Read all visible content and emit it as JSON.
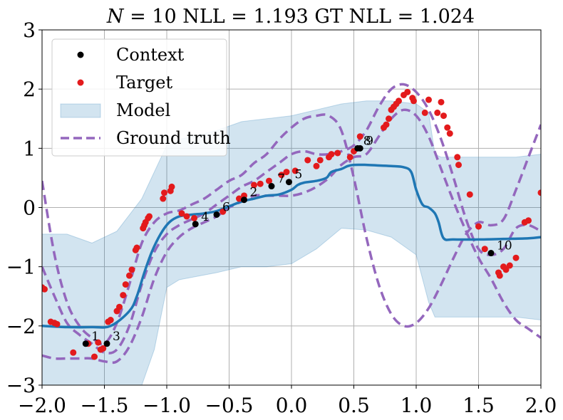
{
  "chart_data": {
    "type": "line",
    "title": "N = 10 NLL = 1.193 GT NLL = 1.024",
    "title_parts": {
      "n_var": "N",
      "rest": " = 10 NLL = 1.193 GT NLL = 1.024"
    },
    "xlabel": "",
    "ylabel": "",
    "xlim": [
      -2.0,
      2.0
    ],
    "ylim": [
      -3,
      3
    ],
    "x_ticks": [
      -2.0,
      -1.5,
      -1.0,
      -0.5,
      0.0,
      0.5,
      1.0,
      1.5,
      2.0
    ],
    "x_tick_labels": [
      "−2.0",
      "−1.5",
      "−1.0",
      "−0.5",
      "0.0",
      "0.5",
      "1.0",
      "1.5",
      "2.0"
    ],
    "y_ticks": [
      -3,
      -2,
      -1,
      0,
      1,
      2,
      3
    ],
    "y_tick_labels": [
      "−3",
      "−2",
      "−1",
      "0",
      "1",
      "2",
      "3"
    ],
    "grid": true,
    "legend": {
      "position": "top-left",
      "entries": [
        {
          "label": "Context",
          "kind": "marker",
          "color": "#000000"
        },
        {
          "label": "Target",
          "kind": "marker",
          "color": "#e31a1c"
        },
        {
          "label": "Model",
          "kind": "patch",
          "color": "#1f77b4"
        },
        {
          "label": "Ground truth",
          "kind": "dashed-line",
          "color": "#9467bd"
        }
      ]
    },
    "colors": {
      "model_mean": "#1f77b4",
      "model_band": "#1f77b4",
      "ground_truth": "#9467bd",
      "context": "#000000",
      "target": "#e31a1c",
      "grid": "#b0b0b0"
    },
    "context_points": [
      {
        "label": "1",
        "x": -1.65,
        "y": -2.3
      },
      {
        "label": "3",
        "x": -1.48,
        "y": -2.3
      },
      {
        "label": "4",
        "x": -0.77,
        "y": -0.28
      },
      {
        "label": "6",
        "x": -0.6,
        "y": -0.12
      },
      {
        "label": "2",
        "x": -0.38,
        "y": 0.13
      },
      {
        "label": "7",
        "x": -0.16,
        "y": 0.36
      },
      {
        "label": "5",
        "x": -0.02,
        "y": 0.43
      },
      {
        "label": "8",
        "x": 0.53,
        "y": 1.0
      },
      {
        "label": "9",
        "x": 0.55,
        "y": 1.0
      },
      {
        "label": "10",
        "x": 1.6,
        "y": -0.77
      }
    ],
    "target_points": [
      {
        "x": -2.0,
        "y": -1.35
      },
      {
        "x": -1.98,
        "y": -1.38
      },
      {
        "x": -1.93,
        "y": -1.93
      },
      {
        "x": -1.9,
        "y": -1.95
      },
      {
        "x": -1.88,
        "y": -1.97
      },
      {
        "x": -1.75,
        "y": -2.45
      },
      {
        "x": -1.63,
        "y": -2.3
      },
      {
        "x": -1.58,
        "y": -2.52
      },
      {
        "x": -1.55,
        "y": -2.28
      },
      {
        "x": -1.53,
        "y": -2.4
      },
      {
        "x": -1.51,
        "y": -2.38
      },
      {
        "x": -1.47,
        "y": -1.93
      },
      {
        "x": -1.45,
        "y": -1.9
      },
      {
        "x": -1.4,
        "y": -1.75
      },
      {
        "x": -1.38,
        "y": -1.68
      },
      {
        "x": -1.35,
        "y": -1.48
      },
      {
        "x": -1.33,
        "y": -1.3
      },
      {
        "x": -1.3,
        "y": -1.15
      },
      {
        "x": -1.28,
        "y": -1.05
      },
      {
        "x": -1.25,
        "y": -0.72
      },
      {
        "x": -1.24,
        "y": -0.68
      },
      {
        "x": -1.19,
        "y": -0.35
      },
      {
        "x": -1.18,
        "y": -0.3
      },
      {
        "x": -1.17,
        "y": -0.25
      },
      {
        "x": -1.15,
        "y": -0.18
      },
      {
        "x": -1.14,
        "y": -0.15
      },
      {
        "x": -1.03,
        "y": 0.15
      },
      {
        "x": -1.02,
        "y": 0.25
      },
      {
        "x": -0.97,
        "y": 0.28
      },
      {
        "x": -0.96,
        "y": 0.35
      },
      {
        "x": -0.88,
        "y": -0.1
      },
      {
        "x": -0.84,
        "y": -0.15
      },
      {
        "x": -0.78,
        "y": -0.18
      },
      {
        "x": -0.55,
        "y": -0.07
      },
      {
        "x": -0.42,
        "y": 0.15
      },
      {
        "x": -0.38,
        "y": 0.2
      },
      {
        "x": -0.3,
        "y": 0.38
      },
      {
        "x": -0.25,
        "y": 0.4
      },
      {
        "x": -0.18,
        "y": 0.45
      },
      {
        "x": -0.08,
        "y": 0.55
      },
      {
        "x": -0.04,
        "y": 0.6
      },
      {
        "x": 0.03,
        "y": 0.62
      },
      {
        "x": 0.13,
        "y": 0.8
      },
      {
        "x": 0.2,
        "y": 0.7
      },
      {
        "x": 0.23,
        "y": 0.8
      },
      {
        "x": 0.3,
        "y": 0.85
      },
      {
        "x": 0.32,
        "y": 0.9
      },
      {
        "x": 0.37,
        "y": 0.92
      },
      {
        "x": 0.47,
        "y": 0.85
      },
      {
        "x": 0.5,
        "y": 0.95
      },
      {
        "x": 0.55,
        "y": 1.2
      },
      {
        "x": 0.74,
        "y": 1.35
      },
      {
        "x": 0.76,
        "y": 1.4
      },
      {
        "x": 0.78,
        "y": 1.5
      },
      {
        "x": 0.8,
        "y": 1.65
      },
      {
        "x": 0.82,
        "y": 1.7
      },
      {
        "x": 0.84,
        "y": 1.75
      },
      {
        "x": 0.86,
        "y": 1.8
      },
      {
        "x": 0.9,
        "y": 1.9
      },
      {
        "x": 0.93,
        "y": 1.95
      },
      {
        "x": 0.97,
        "y": 1.85
      },
      {
        "x": 0.98,
        "y": 1.8
      },
      {
        "x": 1.07,
        "y": 1.6
      },
      {
        "x": 1.1,
        "y": 1.82
      },
      {
        "x": 1.17,
        "y": 1.6
      },
      {
        "x": 1.2,
        "y": 1.78
      },
      {
        "x": 1.22,
        "y": 1.55
      },
      {
        "x": 1.25,
        "y": 1.35
      },
      {
        "x": 1.27,
        "y": 1.25
      },
      {
        "x": 1.33,
        "y": 0.85
      },
      {
        "x": 1.34,
        "y": 0.72
      },
      {
        "x": 1.43,
        "y": 0.22
      },
      {
        "x": 1.5,
        "y": -0.32
      },
      {
        "x": 1.55,
        "y": -0.7
      },
      {
        "x": 1.66,
        "y": -1.1
      },
      {
        "x": 1.67,
        "y": -1.15
      },
      {
        "x": 1.7,
        "y": -1.0
      },
      {
        "x": 1.72,
        "y": -1.05
      },
      {
        "x": 1.75,
        "y": -0.98
      },
      {
        "x": 1.8,
        "y": -0.85
      },
      {
        "x": 1.87,
        "y": -0.25
      },
      {
        "x": 1.9,
        "y": -0.22
      },
      {
        "x": 2.0,
        "y": 0.25
      }
    ],
    "model_mean": {
      "x": [
        -2.0,
        -1.8,
        -1.6,
        -1.45,
        -1.3,
        -1.24,
        -1.18,
        -1.12,
        -1.05,
        -0.98,
        -0.9,
        -0.8,
        -0.7,
        -0.6,
        -0.5,
        -0.4,
        -0.3,
        -0.2,
        -0.1,
        0.0,
        0.05,
        0.1,
        0.2,
        0.28,
        0.32,
        0.4,
        0.45,
        0.5,
        0.6,
        0.7,
        0.8,
        0.9,
        0.96,
        1.0,
        1.05,
        1.1,
        1.15,
        1.18,
        1.22,
        1.3,
        1.5,
        1.7,
        1.9,
        2.0
      ],
      "y": [
        -2.0,
        -2.02,
        -2.02,
        -2.0,
        -1.75,
        -1.5,
        -1.1,
        -0.75,
        -0.45,
        -0.25,
        -0.15,
        -0.12,
        -0.1,
        -0.06,
        0.02,
        0.1,
        0.15,
        0.2,
        0.22,
        0.3,
        0.38,
        0.42,
        0.45,
        0.5,
        0.6,
        0.65,
        0.7,
        0.72,
        0.72,
        0.71,
        0.7,
        0.68,
        0.6,
        0.3,
        0.05,
        0.0,
        -0.1,
        -0.25,
        -0.52,
        -0.54,
        -0.54,
        -0.53,
        -0.52,
        -0.5
      ]
    },
    "model_band": {
      "x": [
        -2.0,
        -1.8,
        -1.6,
        -1.4,
        -1.2,
        -1.1,
        -1.0,
        -0.9,
        -0.8,
        -0.6,
        -0.4,
        -0.2,
        0.0,
        0.2,
        0.4,
        0.6,
        0.8,
        1.0,
        1.1,
        1.15,
        1.2,
        1.3,
        1.4,
        1.6,
        1.8,
        2.0
      ],
      "upper": [
        -0.45,
        -0.45,
        -0.6,
        -0.4,
        0.15,
        0.6,
        1.05,
        1.15,
        1.2,
        1.3,
        1.45,
        1.5,
        1.55,
        1.65,
        1.75,
        1.8,
        1.8,
        1.75,
        1.6,
        0.9,
        0.85,
        0.85,
        0.85,
        0.85,
        0.85,
        0.9
      ],
      "lower": [
        -3.0,
        -3.0,
        -3.0,
        -3.0,
        -3.0,
        -2.4,
        -1.35,
        -1.22,
        -1.18,
        -1.1,
        -1.0,
        -1.0,
        -0.95,
        -0.7,
        -0.35,
        -0.38,
        -0.5,
        -0.8,
        -1.6,
        -1.85,
        -1.85,
        -1.85,
        -1.85,
        -1.85,
        -1.85,
        -1.9
      ]
    },
    "ground_truth": {
      "x": [
        -2.0,
        -1.9,
        -1.8,
        -1.7,
        -1.6,
        -1.5,
        -1.4,
        -1.3,
        -1.2,
        -1.1,
        -1.0,
        -0.9,
        -0.8,
        -0.7,
        -0.6,
        -0.5,
        -0.4,
        -0.3,
        -0.2,
        -0.1,
        0.0,
        0.1,
        0.2,
        0.3,
        0.4,
        0.5,
        0.6,
        0.7,
        0.8,
        0.9,
        1.0,
        1.1,
        1.2,
        1.3,
        1.4,
        1.5,
        1.6,
        1.7,
        1.8,
        1.9,
        2.0
      ],
      "series": [
        {
          "values": [
            0.45,
            -0.8,
            -1.6,
            -2.0,
            -2.2,
            -2.3,
            -1.95,
            -1.3,
            -0.6,
            -0.25,
            -0.1,
            -0.05,
            0.05,
            0.15,
            0.3,
            0.45,
            0.55,
            0.75,
            0.9,
            1.15,
            1.35,
            1.5,
            1.55,
            1.55,
            1.3,
            0.5,
            -0.5,
            -1.3,
            -1.8,
            -2.0,
            -1.95,
            -1.7,
            -1.3,
            -0.85,
            -0.45,
            -0.25,
            -0.3,
            -0.2,
            0.3,
            0.85,
            1.4
          ]
        },
        {
          "values": [
            -1.0,
            -1.5,
            -1.95,
            -2.15,
            -2.3,
            -2.45,
            -2.4,
            -2.0,
            -1.3,
            -0.75,
            -0.45,
            -0.3,
            -0.2,
            -0.1,
            0.05,
            0.2,
            0.35,
            0.45,
            0.6,
            0.75,
            0.9,
            0.95,
            0.9,
            0.9,
            0.95,
            1.05,
            1.3,
            1.7,
            2.0,
            2.08,
            1.95,
            1.65,
            1.15,
            0.5,
            -0.2,
            -0.7,
            -0.8,
            -0.7,
            -0.35,
            -0.3,
            -0.4
          ]
        },
        {
          "values": [
            -2.5,
            -2.55,
            -2.55,
            -2.55,
            -2.55,
            -2.6,
            -2.6,
            -2.35,
            -1.85,
            -1.2,
            -0.75,
            -0.5,
            -0.35,
            -0.25,
            -0.15,
            0.0,
            0.1,
            0.2,
            0.2,
            0.2,
            0.2,
            0.25,
            0.35,
            0.5,
            0.72,
            0.85,
            0.9,
            1.2,
            1.5,
            1.65,
            1.55,
            1.2,
            0.65,
            0.1,
            -0.4,
            -0.85,
            -1.2,
            -1.6,
            -1.9,
            -2.05,
            -2.2
          ]
        }
      ]
    }
  }
}
